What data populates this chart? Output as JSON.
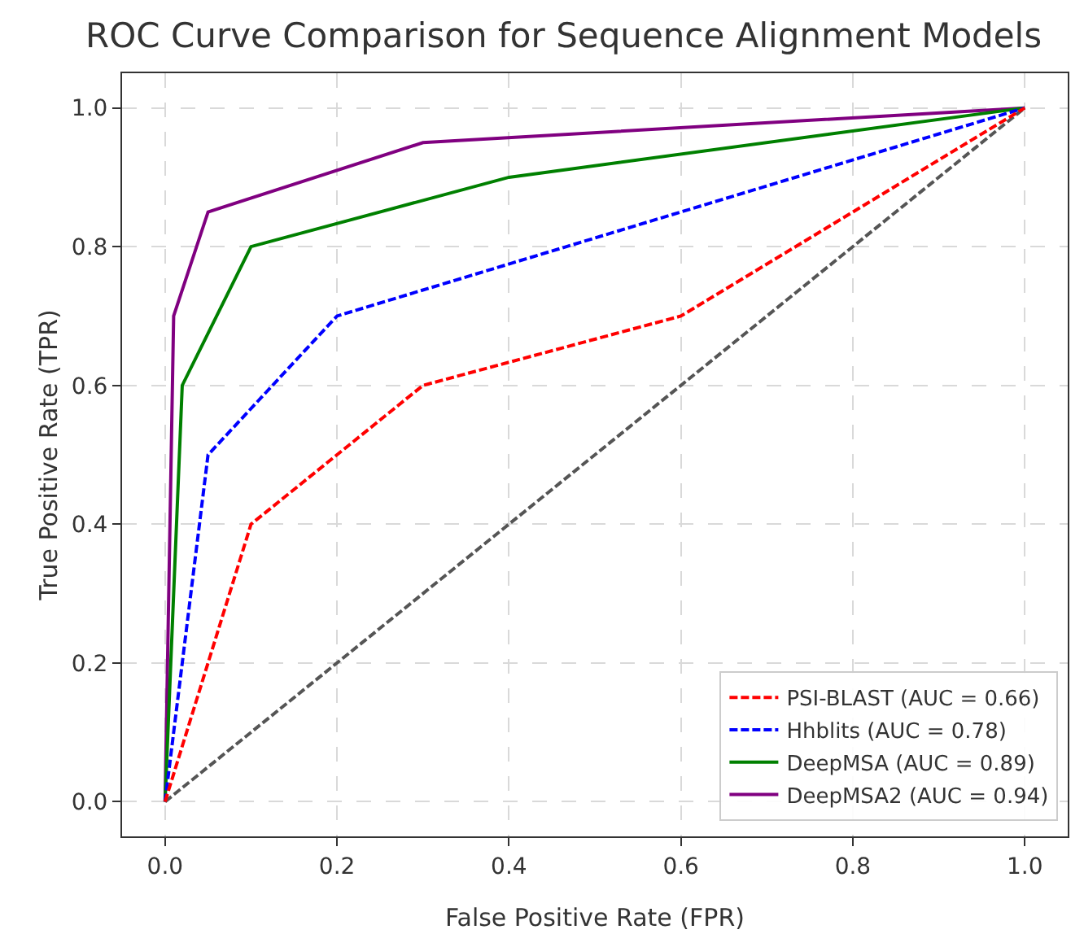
{
  "chart_data": {
    "type": "line",
    "title": "ROC Curve Comparison for Sequence Alignment Models",
    "xlabel": "False Positive Rate (FPR)",
    "ylabel": "True Positive Rate (TPR)",
    "xlim": [
      -0.05,
      1.05
    ],
    "ylim": [
      -0.05,
      1.05
    ],
    "xticks": [
      {
        "value": 0,
        "label": "0.0"
      },
      {
        "value": 0.2,
        "label": "0.2"
      },
      {
        "value": 0.4,
        "label": "0.4"
      },
      {
        "value": 0.6,
        "label": "0.6"
      },
      {
        "value": 0.8,
        "label": "0.8"
      },
      {
        "value": 1,
        "label": "1.0"
      }
    ],
    "yticks": [
      {
        "value": 0,
        "label": "0.0"
      },
      {
        "value": 0.2,
        "label": "0.2"
      },
      {
        "value": 0.4,
        "label": "0.4"
      },
      {
        "value": 0.6,
        "label": "0.6"
      },
      {
        "value": 0.8,
        "label": "0.8"
      },
      {
        "value": 1,
        "label": "1.0"
      }
    ],
    "grid": true,
    "legend": "bottom right",
    "marker": "none",
    "series": [
      {
        "name": "PSI-BLAST (AUC = 0.66)",
        "color": "#ff0000",
        "line_style": "dashed",
        "x": [
          0,
          0.1,
          0.3,
          0.6,
          1
        ],
        "values": [
          0,
          0.4,
          0.6,
          0.7,
          1
        ]
      },
      {
        "name": "Hhblits (AUC = 0.78)",
        "color": "#0000ff",
        "line_style": "dashed",
        "x": [
          0,
          0.05,
          0.2,
          1
        ],
        "values": [
          0,
          0.5,
          0.7,
          1
        ]
      },
      {
        "name": "DeepMSA (AUC = 0.89)",
        "color": "#008000",
        "line_style": "solid",
        "x": [
          0,
          0.02,
          0.1,
          0.4,
          1
        ],
        "values": [
          0,
          0.6,
          0.8,
          0.9,
          1
        ]
      },
      {
        "name": "DeepMSA2 (AUC = 0.94)",
        "color": "#800080",
        "line_style": "solid",
        "x": [
          0,
          0.01,
          0.05,
          0.3,
          1
        ],
        "values": [
          0,
          0.7,
          0.85,
          0.95,
          1
        ]
      },
      {
        "color": "#555555",
        "line_style": "dashed",
        "x": [
          0,
          1
        ],
        "values": [
          0,
          1
        ]
      }
    ]
  }
}
